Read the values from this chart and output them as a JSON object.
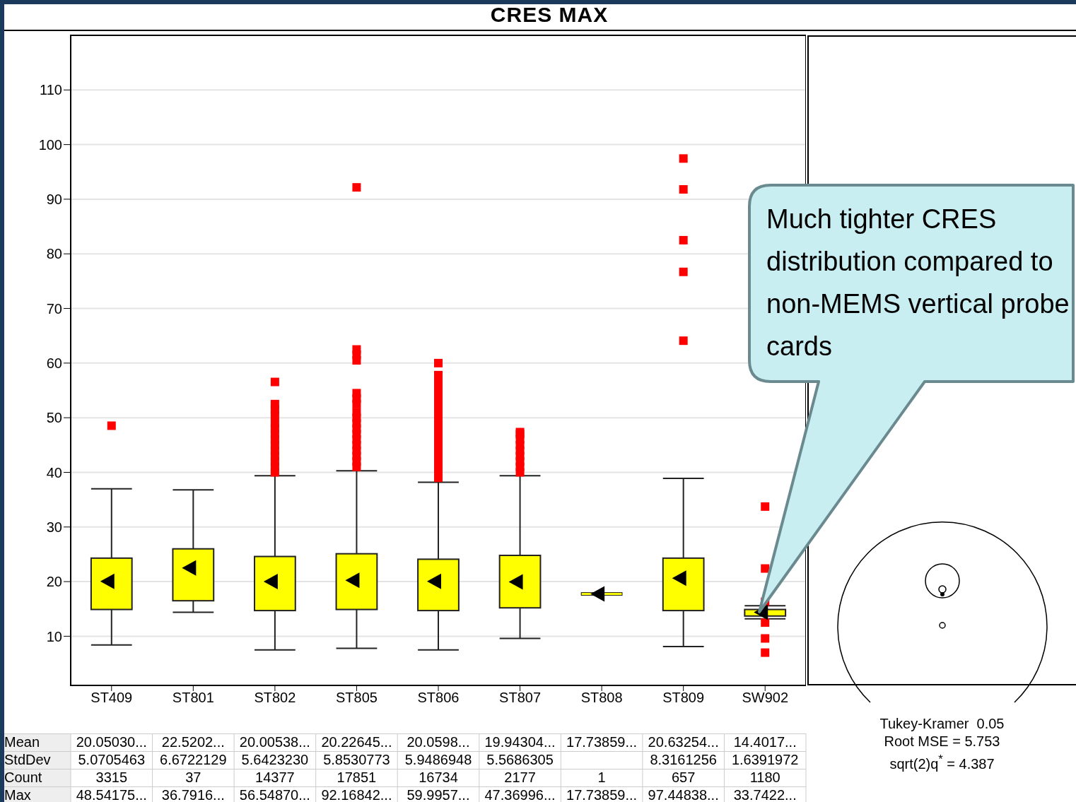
{
  "chart_data": {
    "type": "box",
    "title": "CRES MAX",
    "categories": [
      "ST409",
      "ST801",
      "ST802",
      "ST805",
      "ST806",
      "ST807",
      "ST808",
      "ST809",
      "SW902"
    ],
    "ylim": [
      1,
      120
    ],
    "yticks": [
      10,
      20,
      30,
      40,
      50,
      60,
      70,
      80,
      90,
      100,
      110
    ],
    "grid": "y",
    "marker": "square",
    "series": [
      {
        "color": "#ffff00",
        "boxes": [
          {
            "low": 8.4,
            "q1": 14.9,
            "q3": 24.3,
            "high": 37.0,
            "mean": 20.05,
            "outliers": [
              48.54
            ]
          },
          {
            "low": 14.4,
            "q1": 16.5,
            "q3": 26.0,
            "high": 36.79,
            "mean": 22.52
          },
          {
            "low": 7.5,
            "q1": 14.7,
            "q3": 24.6,
            "high": 39.4,
            "mean": 20.01,
            "outliers": [
              40,
              41,
              42,
              43,
              44,
              45,
              46,
              47,
              48,
              49,
              50.5,
              51.5,
              52.5,
              56.55
            ]
          },
          {
            "low": 7.8,
            "q1": 14.9,
            "q3": 25.1,
            "high": 40.3,
            "mean": 20.23,
            "outliers": [
              41,
              42,
              43,
              44,
              45,
              46,
              47,
              48,
              49,
              50,
              51,
              52.5,
              53.5,
              54.5,
              60.5,
              61.5,
              62.5,
              92.17
            ]
          },
          {
            "low": 7.5,
            "q1": 14.7,
            "q3": 24.1,
            "high": 38.2,
            "mean": 20.06,
            "outliers": [
              39,
              40,
              41,
              42,
              43,
              44,
              45,
              46,
              47,
              48,
              49,
              50,
              51,
              52,
              53,
              54,
              55,
              56,
              57,
              57.8,
              60.0
            ]
          },
          {
            "low": 9.6,
            "q1": 15.2,
            "q3": 24.8,
            "high": 39.4,
            "mean": 19.94,
            "outliers": [
              40,
              41,
              42,
              43,
              44,
              45,
              46,
              47,
              47.37
            ]
          },
          {
            "low": 17.74,
            "q1": 17.74,
            "q3": 17.74,
            "high": 17.74,
            "mean": 17.74
          },
          {
            "low": 8.1,
            "q1": 14.7,
            "q3": 24.3,
            "high": 38.9,
            "mean": 20.63,
            "outliers": [
              64.1,
              76.7,
              82.5,
              91.8,
              97.45
            ]
          },
          {
            "low": 13.2,
            "q1": 13.7,
            "q3": 14.9,
            "high": 15.6,
            "mean": 14.4,
            "outliers": [
              7.0,
              9.6,
              12.5,
              16.3,
              22.4,
              33.74
            ]
          }
        ]
      }
    ],
    "annotations": [
      "Much tighter CRES distribution compared to non-MEMS vertical probe cards",
      "Tukey-Kramer  0.05",
      "Root MSE = 5.753",
      "sqrt(2)q$^{*}$ = 4.387",
      "Mean",
      "20.05030...",
      "22.5202...",
      "20.00538...",
      "20.22645...",
      "20.0598...",
      "19.94304...",
      "17.73859...",
      "20.63254...",
      "14.4017...",
      "StdDev",
      "5.0705463",
      "6.6722129",
      "5.6423230",
      "5.8530773",
      "5.9486948",
      "5.5686305",
      null,
      "8.3161256",
      "1.6391972",
      "Count",
      "3315",
      "37",
      "14377",
      "17851",
      "16734",
      "2177",
      "1",
      "657",
      "1180",
      "Max",
      "48.54175...",
      "36.7916...",
      "56.54870...",
      "92.16842...",
      "59.9957...",
      "47.36996...",
      "17.73859...",
      "97.44838...",
      "33.7422..."
    ]
  }
}
